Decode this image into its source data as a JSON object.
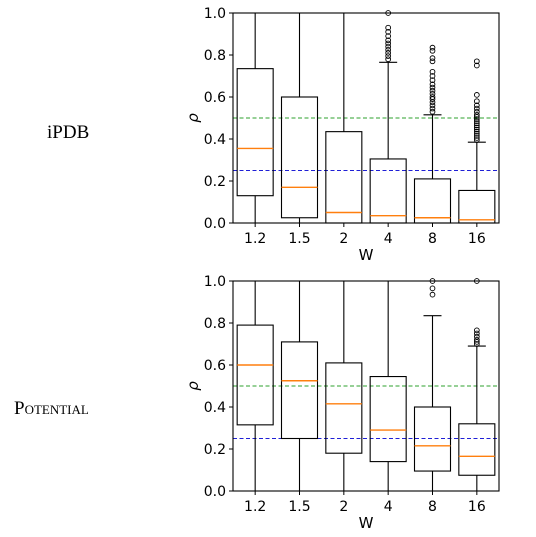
{
  "charts": [
    {
      "row_label": "iPDB",
      "chart_data": {
        "type": "box",
        "title": "",
        "xlabel": "W",
        "ylabel": "ρ",
        "ylim": [
          0,
          1.0
        ],
        "yticks": [
          "0.0",
          "0.2",
          "0.4",
          "0.6",
          "0.8",
          "1.0"
        ],
        "categories": [
          "1.2",
          "1.5",
          "2",
          "4",
          "8",
          "16"
        ],
        "boxes": [
          {
            "whislo": 0.0,
            "q1": 0.13,
            "med": 0.355,
            "q3": 0.735,
            "whishi": 1.0,
            "fliers": []
          },
          {
            "whislo": 0.0,
            "q1": 0.025,
            "med": 0.17,
            "q3": 0.6,
            "whishi": 1.0,
            "fliers": []
          },
          {
            "whislo": 0.0,
            "q1": 0.0,
            "med": 0.05,
            "q3": 0.435,
            "whishi": 1.0,
            "fliers": []
          },
          {
            "whislo": 0.0,
            "q1": 0.0,
            "med": 0.035,
            "q3": 0.305,
            "whishi": 0.765,
            "fliers": [
              0.78,
              0.795,
              0.81,
              0.825,
              0.84,
              0.855,
              0.87,
              0.89,
              0.91,
              0.93,
              1.0
            ]
          },
          {
            "whislo": 0.0,
            "q1": 0.0,
            "med": 0.025,
            "q3": 0.21,
            "whishi": 0.515,
            "fliers": [
              0.53,
              0.545,
              0.56,
              0.575,
              0.59,
              0.6,
              0.615,
              0.63,
              0.645,
              0.66,
              0.68,
              0.7,
              0.72,
              0.77,
              0.785,
              0.82,
              0.835
            ]
          },
          {
            "whislo": 0.0,
            "q1": 0.0,
            "med": 0.015,
            "q3": 0.155,
            "whishi": 0.385,
            "fliers": [
              0.395,
              0.405,
              0.415,
              0.425,
              0.435,
              0.445,
              0.455,
              0.465,
              0.475,
              0.485,
              0.495,
              0.505,
              0.515,
              0.53,
              0.545,
              0.56,
              0.58,
              0.61,
              0.75,
              0.77
            ]
          }
        ],
        "reference_lines": [
          {
            "y": 0.5,
            "color": "#2ca02c",
            "style": "dashed"
          },
          {
            "y": 0.25,
            "color": "#1f1fd6",
            "style": "dashed"
          }
        ],
        "median_color": "#ff7f0e"
      }
    },
    {
      "row_label": "Potential",
      "chart_data": {
        "type": "box",
        "title": "",
        "xlabel": "W",
        "ylabel": "ρ",
        "ylim": [
          0,
          1.0
        ],
        "yticks": [
          "0.0",
          "0.2",
          "0.4",
          "0.6",
          "0.8",
          "1.0"
        ],
        "categories": [
          "1.2",
          "1.5",
          "2",
          "4",
          "8",
          "16"
        ],
        "boxes": [
          {
            "whislo": 0.0,
            "q1": 0.315,
            "med": 0.6,
            "q3": 0.79,
            "whishi": 1.0,
            "fliers": []
          },
          {
            "whislo": 0.0,
            "q1": 0.25,
            "med": 0.525,
            "q3": 0.71,
            "whishi": 1.0,
            "fliers": []
          },
          {
            "whislo": 0.0,
            "q1": 0.18,
            "med": 0.415,
            "q3": 0.61,
            "whishi": 1.0,
            "fliers": []
          },
          {
            "whislo": 0.0,
            "q1": 0.14,
            "med": 0.29,
            "q3": 0.545,
            "whishi": 1.0,
            "fliers": []
          },
          {
            "whislo": 0.0,
            "q1": 0.095,
            "med": 0.215,
            "q3": 0.4,
            "whishi": 0.835,
            "fliers": [
              0.935,
              0.965,
              1.0
            ]
          },
          {
            "whislo": 0.0,
            "q1": 0.075,
            "med": 0.165,
            "q3": 0.32,
            "whishi": 0.69,
            "fliers": [
              0.7,
              0.71,
              0.72,
              0.735,
              0.75,
              0.765,
              1.0
            ]
          }
        ],
        "reference_lines": [
          {
            "y": 0.5,
            "color": "#2ca02c",
            "style": "dashed"
          },
          {
            "y": 0.25,
            "color": "#1f1fd6",
            "style": "dashed"
          }
        ],
        "median_color": "#ff7f0e"
      }
    }
  ]
}
